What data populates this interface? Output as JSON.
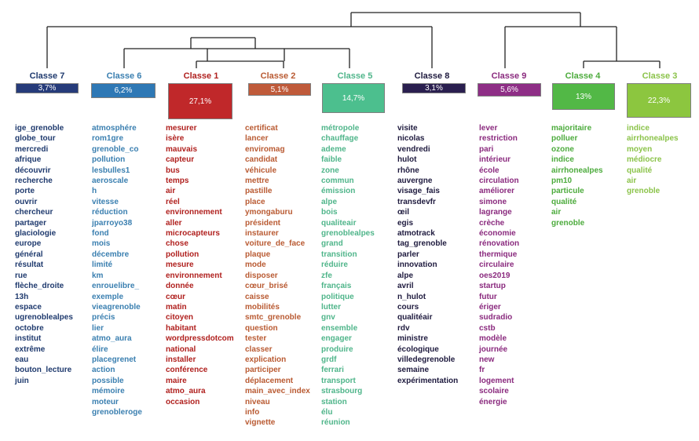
{
  "classes": [
    {
      "key": "c7",
      "title": "Classe 7",
      "pct": "3,7%",
      "color": "#1f3a6e",
      "box": "#263b7a",
      "words": [
        "ige_grenoble",
        "globe_tour",
        "mercredi",
        "afrique",
        "découvrir",
        "recherche",
        "porte",
        "ouvrir",
        "chercheur",
        "partager",
        "glaciologie",
        "europe",
        "général",
        "résultat",
        "rue",
        "flèche_droite",
        "13h",
        "espace",
        "ugrenoblealpes",
        "octobre",
        "institut",
        "extrême",
        "eau",
        "bouton_lecture",
        "juin"
      ]
    },
    {
      "key": "c6",
      "title": "Classe 6",
      "pct": "6,2%",
      "color": "#3a7fb0",
      "box": "#2e78b5",
      "words": [
        "atmosphére",
        "rom1gre",
        "grenoble_co",
        "pollution",
        "lesbulles1",
        "aeroscale",
        "h",
        "vitesse",
        "réduction",
        "jparroyo38",
        "fond",
        "mois",
        "décembre",
        "limité",
        "km",
        "enrouelibre_",
        "exemple",
        "vieagrenoble",
        "précis",
        "lier",
        "atmo_aura",
        "élire",
        "placegrenet",
        "action",
        "possible",
        "mémoire",
        "moteur",
        "grenobleroge"
      ]
    },
    {
      "key": "c1",
      "title": "Classe 1",
      "pct": "27,1%",
      "color": "#b0201e",
      "box": "#c0282a",
      "words": [
        "mesurer",
        "isère",
        "mauvais",
        "capteur",
        "bus",
        "temps",
        "air",
        "réel",
        "environnement",
        "aller",
        "microcapteurs",
        "chose",
        "pollution",
        "mesure",
        "environnement",
        "donnée",
        "cœur",
        "matin",
        "citoyen",
        "habitant",
        "wordpressdotcom",
        "national",
        "installer",
        "conférence",
        "maire",
        "atmo_aura",
        "occasion"
      ]
    },
    {
      "key": "c2",
      "title": "Classe 2",
      "pct": "5,1%",
      "color": "#b95a32",
      "box": "#bf5a3a",
      "words": [
        "certificat",
        "lancer",
        "enviromag",
        "candidat",
        "véhicule",
        "mettre",
        "pastille",
        "place",
        "ymongaburu",
        "président",
        "instaurer",
        "voiture_de_face",
        "plaque",
        "mode",
        "disposer",
        "cœur_brisé",
        "caisse",
        "mobilités",
        "smtc_grenoble",
        "question",
        "tester",
        "classer",
        "explication",
        "participer",
        "déplacement",
        "main_avec_index",
        "niveau",
        "info",
        "vignette"
      ]
    },
    {
      "key": "c5",
      "title": "Classe 5",
      "pct": "14,7%",
      "color": "#4fb58a",
      "box": "#4cbf8e",
      "words": [
        "métropole",
        "chauffage",
        "ademe",
        "faible",
        "zone",
        "commun",
        "émission",
        "alpe",
        "bois",
        "qualiteair",
        "grenoblealpes",
        "grand",
        "transition",
        "réduire",
        "zfe",
        "français",
        "politique",
        "lutter",
        "gnv",
        "ensemble",
        "engager",
        "produire",
        "grdf",
        "ferrari",
        "transport",
        "strasbourg",
        "station",
        "élu",
        "réunion"
      ]
    },
    {
      "key": "c8",
      "title": "Classe 8",
      "pct": "3,1%",
      "color": "#1e1a3e",
      "box": "#2a1f4f",
      "words": [
        "visite",
        "nicolas",
        "vendredi",
        "hulot",
        "rhône",
        "auvergne",
        "visage_fais",
        "transdevfr",
        "œil",
        "egis",
        "atmotrack",
        "tag_grenoble",
        "parler",
        "innovation",
        "alpe",
        "avril",
        "n_hulot",
        "cours",
        "qualitéair",
        "rdv",
        "ministre",
        "écologique",
        "villedegrenoble",
        "semaine",
        "expérimentation"
      ]
    },
    {
      "key": "c9",
      "title": "Classe 9",
      "pct": "5,6%",
      "color": "#8a2a7e",
      "box": "#8e2e86",
      "words": [
        "lever",
        "restriction",
        "pari",
        "intérieur",
        "école",
        "circulation",
        "améliorer",
        "simone",
        "lagrange",
        "crèche",
        "économie",
        "rénovation",
        "thermique",
        "circulaire",
        "oes2019",
        "startup",
        "futur",
        "ériger",
        "sudradio",
        "cstb",
        "modèle",
        "journée",
        "new",
        "fr",
        "logement",
        "scolaire",
        "énergie"
      ]
    },
    {
      "key": "c4",
      "title": "Classe 4",
      "pct": "13%",
      "color": "#4cab3c",
      "box": "#52b846",
      "words": [
        "majoritaire",
        "polluer",
        "ozone",
        "indice",
        "airrhonealpes",
        "pm10",
        "particule",
        "qualité",
        "air",
        "grenoble"
      ]
    },
    {
      "key": "c3",
      "title": "Classe 3",
      "pct": "22,3%",
      "color": "#8bc34a",
      "box": "#8cc63f",
      "words": [
        "indice",
        "airrhonealpes",
        "moyen",
        "médiocre",
        "qualité",
        "air",
        "grenoble"
      ]
    }
  ]
}
